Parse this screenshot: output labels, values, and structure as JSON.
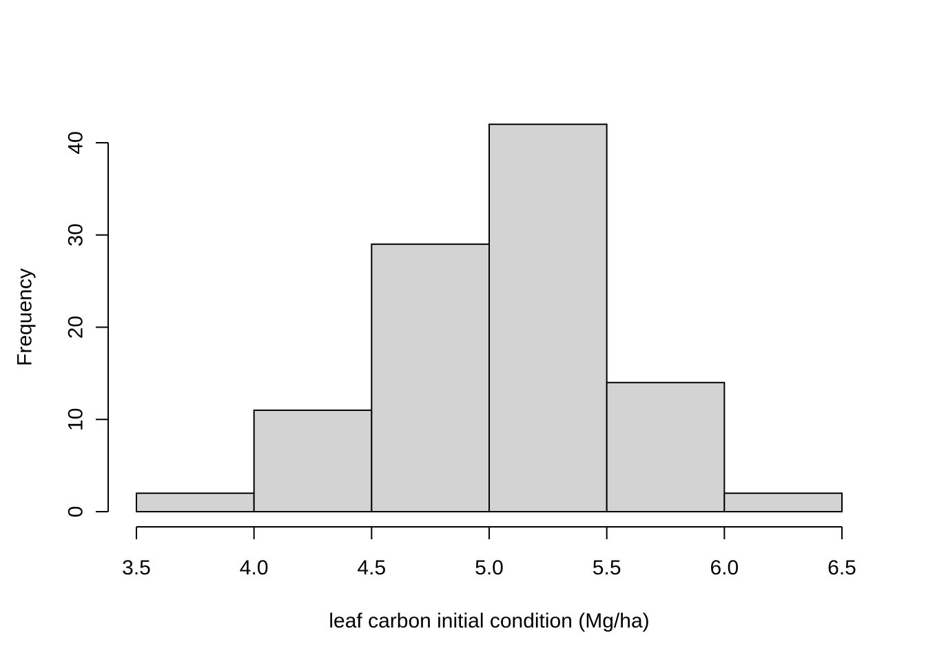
{
  "chart_data": {
    "type": "bar",
    "subtype": "histogram",
    "title": "",
    "xlabel": "leaf carbon initial condition (Mg/ha)",
    "ylabel": "Frequency",
    "bins": [
      {
        "start": 3.5,
        "end": 4.0,
        "count": 2
      },
      {
        "start": 4.0,
        "end": 4.5,
        "count": 11
      },
      {
        "start": 4.5,
        "end": 5.0,
        "count": 29
      },
      {
        "start": 5.0,
        "end": 5.5,
        "count": 42
      },
      {
        "start": 5.5,
        "end": 6.0,
        "count": 14
      },
      {
        "start": 6.0,
        "end": 6.5,
        "count": 2
      }
    ],
    "x_ticks": [
      "3.5",
      "4.0",
      "4.5",
      "5.0",
      "5.5",
      "6.0",
      "6.5"
    ],
    "y_ticks": [
      "0",
      "10",
      "20",
      "30",
      "40"
    ],
    "xlim": [
      3.5,
      6.5
    ],
    "ylim": [
      0,
      40
    ],
    "grid": false,
    "legend": "none",
    "colors": {
      "bar_fill": "#d3d3d3",
      "bar_stroke": "#000000",
      "axis": "#000000",
      "background": "#ffffff"
    }
  }
}
